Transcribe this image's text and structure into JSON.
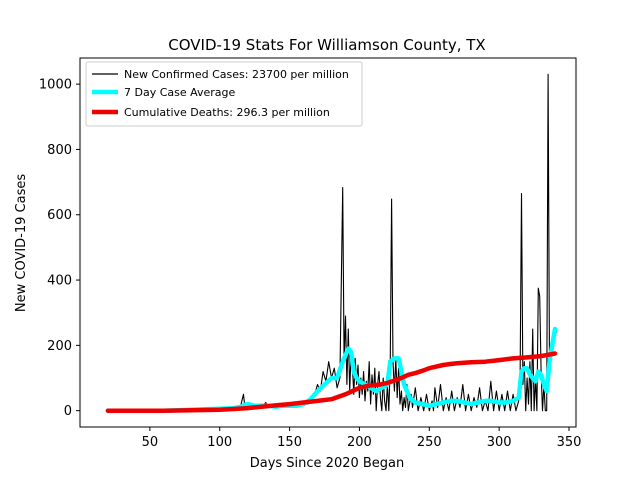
{
  "chart_data": {
    "type": "line",
    "title": "COVID-19 Stats For Williamson County, TX",
    "xlabel": "Days Since 2020 Began",
    "ylabel": "New COVID-19 Cases",
    "xlim": [
      0,
      355
    ],
    "ylim": [
      -50,
      1080
    ],
    "xticks": [
      50,
      100,
      150,
      200,
      250,
      300,
      350
    ],
    "yticks": [
      0,
      200,
      400,
      600,
      800,
      1000
    ],
    "grid": false,
    "legend_position": "top-left",
    "series": [
      {
        "name": "New Confirmed Cases: 23700 per million",
        "color": "#000000",
        "style": "thin",
        "points": [
          [
            20,
            0
          ],
          [
            40,
            0
          ],
          [
            60,
            0
          ],
          [
            80,
            0
          ],
          [
            90,
            3
          ],
          [
            100,
            5
          ],
          [
            110,
            8
          ],
          [
            115,
            15
          ],
          [
            117,
            50
          ],
          [
            118,
            10
          ],
          [
            120,
            25
          ],
          [
            122,
            5
          ],
          [
            125,
            15
          ],
          [
            128,
            8
          ],
          [
            130,
            12
          ],
          [
            133,
            25
          ],
          [
            135,
            10
          ],
          [
            138,
            20
          ],
          [
            140,
            8
          ],
          [
            143,
            15
          ],
          [
            145,
            12
          ],
          [
            148,
            20
          ],
          [
            150,
            10
          ],
          [
            153,
            18
          ],
          [
            155,
            25
          ],
          [
            158,
            15
          ],
          [
            160,
            30
          ],
          [
            163,
            20
          ],
          [
            165,
            40
          ],
          [
            168,
            50
          ],
          [
            170,
            80
          ],
          [
            172,
            60
          ],
          [
            174,
            120
          ],
          [
            176,
            90
          ],
          [
            178,
            150
          ],
          [
            180,
            100
          ],
          [
            182,
            130
          ],
          [
            184,
            70
          ],
          [
            186,
            100
          ],
          [
            188,
            683
          ],
          [
            189,
            150
          ],
          [
            190,
            290
          ],
          [
            191,
            80
          ],
          [
            192,
            250
          ],
          [
            193,
            60
          ],
          [
            194,
            180
          ],
          [
            195,
            130
          ],
          [
            196,
            50
          ],
          [
            197,
            160
          ],
          [
            198,
            80
          ],
          [
            199,
            140
          ],
          [
            200,
            40
          ],
          [
            201,
            100
          ],
          [
            202,
            50
          ],
          [
            203,
            120
          ],
          [
            204,
            30
          ],
          [
            205,
            90
          ],
          [
            206,
            60
          ],
          [
            207,
            150
          ],
          [
            208,
            20
          ],
          [
            209,
            110
          ],
          [
            210,
            50
          ],
          [
            211,
            130
          ],
          [
            212,
            0
          ],
          [
            213,
            80
          ],
          [
            214,
            120
          ],
          [
            215,
            40
          ],
          [
            216,
            0
          ],
          [
            217,
            100
          ],
          [
            218,
            30
          ],
          [
            219,
            0
          ],
          [
            220,
            80
          ],
          [
            221,
            0
          ],
          [
            222,
            130
          ],
          [
            223,
            648
          ],
          [
            224,
            150
          ],
          [
            225,
            60
          ],
          [
            226,
            160
          ],
          [
            227,
            40
          ],
          [
            228,
            130
          ],
          [
            229,
            20
          ],
          [
            230,
            60
          ],
          [
            231,
            0
          ],
          [
            232,
            40
          ],
          [
            233,
            10
          ],
          [
            234,
            80
          ],
          [
            235,
            0
          ],
          [
            237,
            50
          ],
          [
            238,
            10
          ],
          [
            240,
            70
          ],
          [
            242,
            0
          ],
          [
            244,
            40
          ],
          [
            246,
            0
          ],
          [
            248,
            50
          ],
          [
            250,
            0
          ],
          [
            252,
            30
          ],
          [
            253,
            0
          ],
          [
            254,
            70
          ],
          [
            256,
            10
          ],
          [
            258,
            80
          ],
          [
            260,
            0
          ],
          [
            262,
            40
          ],
          [
            264,
            0
          ],
          [
            266,
            60
          ],
          [
            268,
            0
          ],
          [
            270,
            40
          ],
          [
            272,
            10
          ],
          [
            274,
            80
          ],
          [
            276,
            0
          ],
          [
            278,
            50
          ],
          [
            280,
            0
          ],
          [
            282,
            40
          ],
          [
            284,
            10
          ],
          [
            286,
            70
          ],
          [
            288,
            0
          ],
          [
            290,
            30
          ],
          [
            292,
            0
          ],
          [
            294,
            90
          ],
          [
            296,
            0
          ],
          [
            298,
            60
          ],
          [
            300,
            0
          ],
          [
            302,
            50
          ],
          [
            304,
            0
          ],
          [
            306,
            60
          ],
          [
            308,
            0
          ],
          [
            310,
            50
          ],
          [
            312,
            0
          ],
          [
            314,
            30
          ],
          [
            315,
            100
          ],
          [
            316,
            665
          ],
          [
            317,
            80
          ],
          [
            318,
            150
          ],
          [
            319,
            0
          ],
          [
            320,
            100
          ],
          [
            321,
            20
          ],
          [
            322,
            150
          ],
          [
            323,
            0
          ],
          [
            324,
            250
          ],
          [
            325,
            0
          ],
          [
            326,
            100
          ],
          [
            327,
            0
          ],
          [
            328,
            375
          ],
          [
            329,
            350
          ],
          [
            330,
            120
          ],
          [
            331,
            0
          ],
          [
            332,
            80
          ],
          [
            333,
            0
          ],
          [
            334,
            0
          ],
          [
            335,
            1030
          ],
          [
            336,
            120
          ],
          [
            337,
            150
          ],
          [
            338,
            180
          ],
          [
            339,
            210
          ],
          [
            340,
            230
          ],
          [
            341,
            240
          ]
        ]
      },
      {
        "name": "7 Day Case Average",
        "color": "#00ffff",
        "style": "thick",
        "points": [
          [
            20,
            0
          ],
          [
            60,
            0
          ],
          [
            80,
            3
          ],
          [
            100,
            6
          ],
          [
            110,
            8
          ],
          [
            115,
            12
          ],
          [
            118,
            18
          ],
          [
            120,
            20
          ],
          [
            125,
            15
          ],
          [
            130,
            15
          ],
          [
            135,
            15
          ],
          [
            140,
            12
          ],
          [
            145,
            15
          ],
          [
            150,
            15
          ],
          [
            155,
            15
          ],
          [
            160,
            20
          ],
          [
            165,
            35
          ],
          [
            170,
            60
          ],
          [
            175,
            80
          ],
          [
            180,
            100
          ],
          [
            184,
            100
          ],
          [
            188,
            150
          ],
          [
            190,
            170
          ],
          [
            192,
            190
          ],
          [
            194,
            180
          ],
          [
            196,
            120
          ],
          [
            198,
            100
          ],
          [
            200,
            90
          ],
          [
            204,
            80
          ],
          [
            208,
            70
          ],
          [
            212,
            60
          ],
          [
            216,
            70
          ],
          [
            220,
            80
          ],
          [
            222,
            150
          ],
          [
            225,
            160
          ],
          [
            228,
            160
          ],
          [
            230,
            120
          ],
          [
            232,
            80
          ],
          [
            234,
            60
          ],
          [
            236,
            40
          ],
          [
            240,
            25
          ],
          [
            245,
            20
          ],
          [
            250,
            15
          ],
          [
            255,
            20
          ],
          [
            260,
            25
          ],
          [
            265,
            30
          ],
          [
            270,
            30
          ],
          [
            275,
            25
          ],
          [
            280,
            20
          ],
          [
            285,
            25
          ],
          [
            290,
            30
          ],
          [
            295,
            30
          ],
          [
            300,
            25
          ],
          [
            305,
            25
          ],
          [
            310,
            30
          ],
          [
            314,
            40
          ],
          [
            316,
            120
          ],
          [
            318,
            130
          ],
          [
            320,
            130
          ],
          [
            322,
            110
          ],
          [
            324,
            100
          ],
          [
            326,
            90
          ],
          [
            328,
            120
          ],
          [
            330,
            110
          ],
          [
            332,
            80
          ],
          [
            334,
            60
          ],
          [
            336,
            150
          ],
          [
            338,
            200
          ],
          [
            340,
            250
          ]
        ]
      },
      {
        "name": "Cumulative Deaths: 296.3 per million",
        "color": "#ee0000",
        "style": "thick",
        "points": [
          [
            20,
            0
          ],
          [
            60,
            0
          ],
          [
            80,
            1
          ],
          [
            90,
            2
          ],
          [
            100,
            3
          ],
          [
            110,
            5
          ],
          [
            120,
            8
          ],
          [
            130,
            12
          ],
          [
            140,
            16
          ],
          [
            150,
            20
          ],
          [
            160,
            25
          ],
          [
            170,
            30
          ],
          [
            180,
            35
          ],
          [
            190,
            50
          ],
          [
            195,
            60
          ],
          [
            200,
            70
          ],
          [
            205,
            75
          ],
          [
            210,
            78
          ],
          [
            215,
            80
          ],
          [
            220,
            85
          ],
          [
            225,
            92
          ],
          [
            230,
            100
          ],
          [
            235,
            110
          ],
          [
            240,
            115
          ],
          [
            245,
            122
          ],
          [
            250,
            130
          ],
          [
            255,
            135
          ],
          [
            260,
            140
          ],
          [
            265,
            143
          ],
          [
            270,
            145
          ],
          [
            280,
            148
          ],
          [
            290,
            150
          ],
          [
            300,
            155
          ],
          [
            310,
            160
          ],
          [
            320,
            163
          ],
          [
            330,
            167
          ],
          [
            340,
            175
          ]
        ]
      }
    ]
  }
}
